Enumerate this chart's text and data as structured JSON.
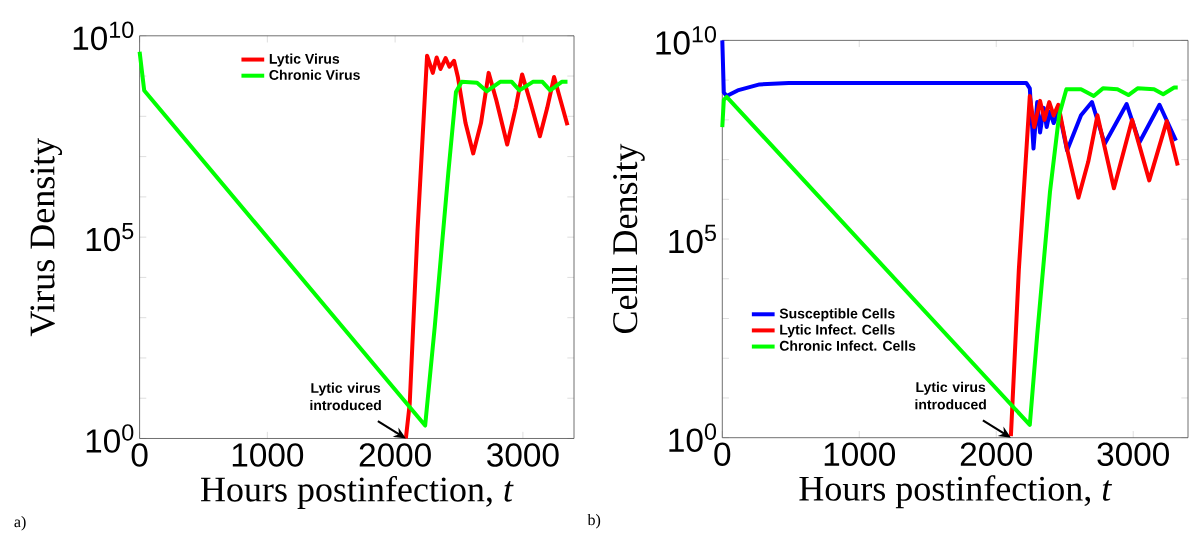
{
  "chart_data": [
    {
      "type": "line",
      "xlabel": "Hours postinfection, *t*",
      "ylabel": "Virus Density",
      "log": "y",
      "legend": "top",
      "xlim": [
        0,
        3400
      ],
      "ylim": [
        1,
        10000000000
      ],
      "xticks": [
        0,
        1000,
        2000,
        3000
      ],
      "yticks": [
        {
          "value": 1,
          "label": "10$^{0}$"
        },
        {
          "value": 10,
          "label": null
        },
        {
          "value": 100,
          "label": null
        },
        {
          "value": 1000,
          "label": null
        },
        {
          "value": 10000,
          "label": null
        },
        {
          "value": 100000,
          "label": "10$^{5}$"
        },
        {
          "value": 1000000,
          "label": null
        },
        {
          "value": 10000000,
          "label": null
        },
        {
          "value": 100000000,
          "label": null
        },
        {
          "value": 1000000000,
          "label": null
        },
        {
          "value": 10000000000,
          "label": "10$^{10}$"
        }
      ],
      "series": [
        {
          "name": "Lytic Virus",
          "color": "#ff0000",
          "x": [
            2084,
            2114,
            2175,
            2250,
            2295,
            2325,
            2355,
            2395,
            2425,
            2461,
            2491,
            2551,
            2611,
            2672,
            2732,
            2792,
            2877,
            2943,
            2994,
            3063,
            3133,
            3190,
            3244,
            3349
          ],
          "values": [
            1,
            7.2,
            140000.0,
            3200000000.0,
            1200000000.0,
            2900000000.0,
            1500000000.0,
            2800000000.0,
            1700000000.0,
            2400000000.0,
            950000000.0,
            68000000.0,
            12000000.0,
            68000000.0,
            1200000000.0,
            250000000.0,
            20000000.0,
            160000000.0,
            1100000000.0,
            200000000.0,
            32000000.0,
            160000000.0,
            950000000.0,
            60000000.0
          ]
        },
        {
          "name": "Chronic Virus",
          "color": "#00ff00",
          "x": [
            0,
            36,
            2235,
            2310,
            2416,
            2476,
            2521,
            2641,
            2717,
            2822,
            2913,
            2973,
            3078,
            3153,
            3214,
            3304,
            3349
          ],
          "values": [
            4000000000.0,
            440000000.0,
            2.1,
            590,
            3900000.0,
            400000000.0,
            720000000.0,
            680000000.0,
            420000000.0,
            720000000.0,
            720000000.0,
            440000000.0,
            720000000.0,
            720000000.0,
            440000000.0,
            720000000.0,
            720000000.0
          ]
        }
      ],
      "annotations": [
        {
          "text": "Lytic virus introduced",
          "x": 2084,
          "y": 1
        },
        "a)"
      ]
    },
    {
      "type": "line",
      "xlabel": "Hours postinfection, *t*",
      "ylabel": "Celll Density",
      "log": "y",
      "legend": "bottom left",
      "xlim": [
        0,
        3400
      ],
      "ylim": [
        1,
        10000000000
      ],
      "xticks": [
        0,
        1000,
        2000,
        3000
      ],
      "yticks": [
        {
          "value": 1,
          "label": "10$^{0}$"
        },
        {
          "value": 10,
          "label": null
        },
        {
          "value": 100,
          "label": null
        },
        {
          "value": 1000,
          "label": null
        },
        {
          "value": 10000,
          "label": null
        },
        {
          "value": 100000,
          "label": "10$^{5}$"
        },
        {
          "value": 1000000,
          "label": null
        },
        {
          "value": 10000000,
          "label": null
        },
        {
          "value": 100000000,
          "label": null
        },
        {
          "value": 1000000000,
          "label": null
        },
        {
          "value": 10000000000,
          "label": "10$^{10}$"
        }
      ],
      "series": [
        {
          "name": "Susceptible Cells",
          "color": "#0000ff",
          "x": [
            0,
            11,
            32,
            112,
            272,
            485,
            2219,
            2245,
            2272,
            2299,
            2320,
            2347,
            2368,
            2392,
            2419,
            2459,
            2517,
            2619,
            2699,
            2792,
            2952,
            3045,
            3192,
            3312
          ],
          "values": [
            10000000000.0,
            490000000.0,
            400000000.0,
            550000000.0,
            780000000.0,
            850000000.0,
            850000000.0,
            620000000.0,
            19000000.0,
            280000000.0,
            48000000.0,
            200000000.0,
            66000000.0,
            160000000.0,
            83000000.0,
            160000000.0,
            17000000.0,
            130000000.0,
            280000000.0,
            25000000.0,
            250000000.0,
            27000000.0,
            240000000.0,
            30000000.0
          ]
        },
        {
          "name": "Lytic Infect. Cells",
          "color": "#ff0000",
          "x": [
            2107,
            2165,
            2245,
            2277,
            2320,
            2352,
            2387,
            2419,
            2453,
            2512,
            2600,
            2672,
            2739,
            2859,
            2992,
            3117,
            3245,
            3325
          ],
          "values": [
            1.1,
            17000.0,
            400000000.0,
            66000000.0,
            300000000.0,
            100000000.0,
            280000000.0,
            130000000.0,
            240000000.0,
            22000000.0,
            1100000.0,
            8900000.0,
            130000000.0,
            1900000.0,
            100000000.0,
            3000000.0,
            93000000.0,
            7100000.0
          ]
        },
        {
          "name": "Chronic Infect. Cells",
          "color": "#00ff00",
          "x": [
            0,
            11,
            32,
            2245,
            2299,
            2392,
            2459,
            2512,
            2619,
            2712,
            2779,
            2885,
            2965,
            3032,
            3152,
            3219,
            3299,
            3325
          ],
          "values": [
            66000000.0,
            320000000.0,
            380000000.0,
            2.1,
            390,
            1500000.0,
            130000000.0,
            590000000.0,
            590000000.0,
            400000000.0,
            620000000.0,
            590000000.0,
            420000000.0,
            620000000.0,
            590000000.0,
            440000000.0,
            650000000.0,
            650000000.0
          ]
        }
      ],
      "annotations": [
        {
          "text": "Lytic virus introduced",
          "x": 2107,
          "y": 1
        },
        "b)"
      ]
    }
  ]
}
